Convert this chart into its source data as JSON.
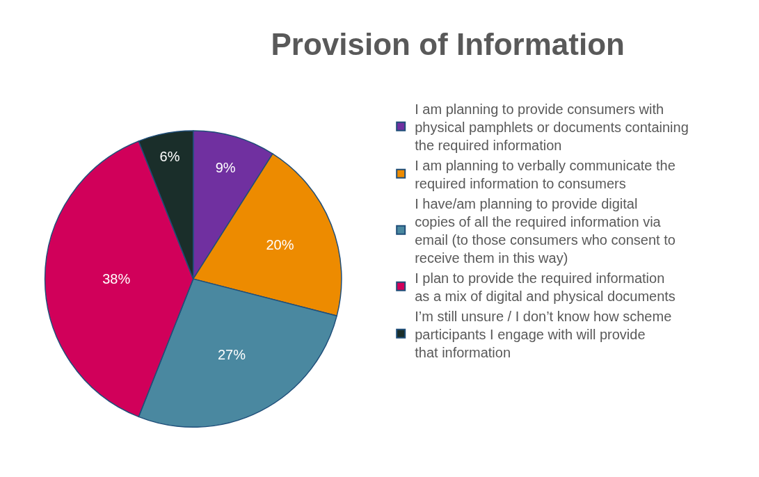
{
  "chart_data": {
    "type": "pie",
    "title": "Provision of Information",
    "categories": [
      "I am planning to provide consumers with physical pamphlets or documents containing the required information",
      "I am planning to verbally communicate the required information to consumers",
      "I have/am planning to provide digital copies of all the required information via email (to those consumers who consent to receive them in this way)",
      "I plan to provide the required information as a mix of digital and physical documents",
      "I’m still unsure / I don’t know how scheme participants I engage with will provide that information"
    ],
    "values": [
      9,
      20,
      27,
      38,
      6
    ],
    "value_labels": [
      "9%",
      "20%",
      "27%",
      "38%",
      "6%"
    ],
    "colors": [
      "#7030a0",
      "#ed8b00",
      "#4a88a0",
      "#d1005a",
      "#1a2e2a"
    ],
    "legend": "right"
  }
}
